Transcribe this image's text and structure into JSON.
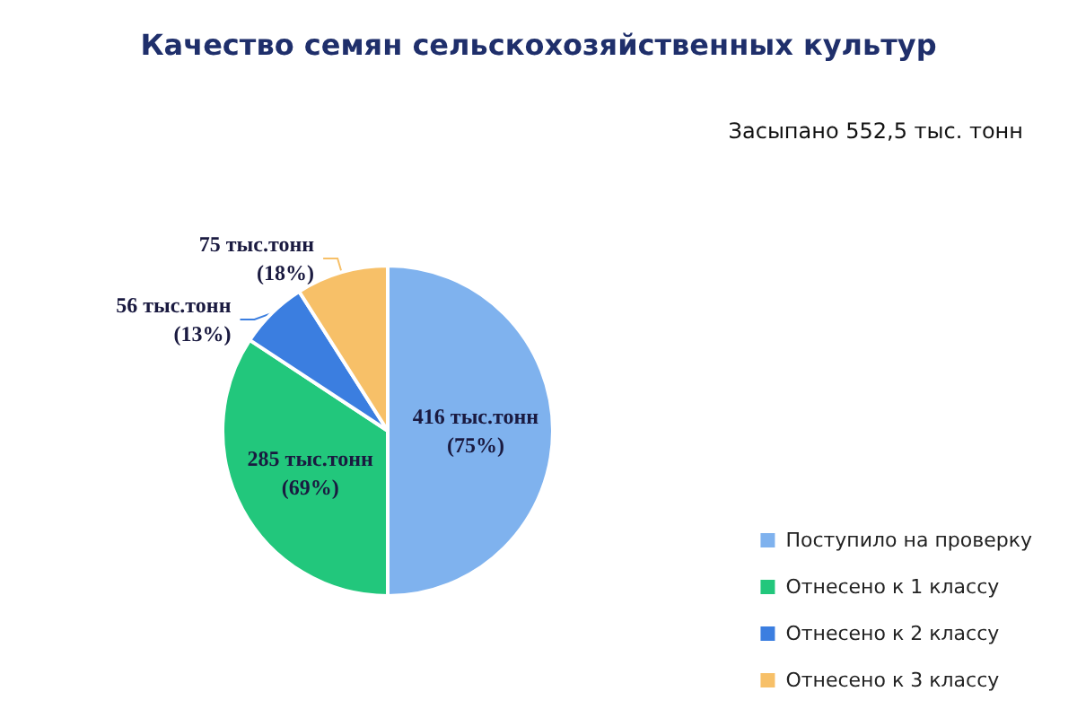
{
  "chart_data": {
    "type": "pie",
    "title": "Качество семян сельскохозяйственных культур",
    "subtitle": "Засыпано 552,5 тыс. тонн",
    "categories": [
      "Поступило на проверку",
      "Отнесено к 1 классу",
      "Отнесено к 2 классу",
      "Отнесено к 3 классу"
    ],
    "values": [
      416,
      285,
      56,
      75
    ],
    "colors": [
      "#7fb2ee",
      "#22c77c",
      "#3b7ee0",
      "#f7c068"
    ],
    "value_labels": [
      "416 тыс.тонн\n(75%)",
      "285 тыс.тонн\n(69%)",
      "56 тыс.тонн\n(13%)",
      "75 тыс.тонн\n(18%)"
    ],
    "legend": "bottom right"
  }
}
